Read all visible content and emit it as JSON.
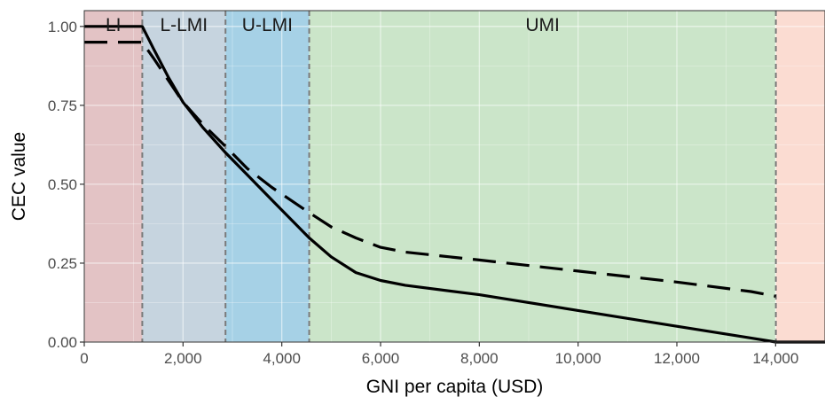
{
  "chart_data": {
    "type": "line",
    "xlabel": "GNI per capita (USD)",
    "ylabel": "CEC value",
    "xlim": [
      0,
      15000
    ],
    "ylim": [
      0,
      1.05
    ],
    "x_ticks": [
      0,
      2000,
      4000,
      6000,
      8000,
      10000,
      12000,
      14000
    ],
    "x_tick_labels": [
      "0",
      "2,000",
      "4,000",
      "6,000",
      "8,000",
      "10,000",
      "12,000",
      "14,000"
    ],
    "y_ticks": [
      0,
      0.25,
      0.5,
      0.75,
      1.0
    ],
    "y_tick_labels": [
      "0.00",
      "0.25",
      "0.50",
      "0.75",
      "1.00"
    ],
    "grid": true,
    "income_bands": [
      {
        "label": "LI",
        "from": 0,
        "to": 1175,
        "color": "#e3c3c5"
      },
      {
        "label": "L-LMI",
        "from": 1175,
        "to": 2860,
        "color": "#c6d4df"
      },
      {
        "label": "U-LMI",
        "from": 2860,
        "to": 4555,
        "color": "#a6d1e6"
      },
      {
        "label": "UMI",
        "from": 4555,
        "to": 14005,
        "color": "#cbe5c9"
      },
      {
        "label": "",
        "from": 14005,
        "to": 15000,
        "color": "#fbdcd2"
      }
    ],
    "band_boundaries": [
      1175,
      2860,
      4555,
      14005
    ],
    "series": [
      {
        "line_style": "solid",
        "x": [
          0,
          1175,
          1400,
          1700,
          2000,
          2400,
          2860,
          3300,
          3800,
          4555,
          5000,
          5500,
          6000,
          6500,
          8000,
          10000,
          12000,
          13500,
          14005,
          15000
        ],
        "y": [
          1.0,
          1.0,
          0.93,
          0.84,
          0.76,
          0.68,
          0.6,
          0.53,
          0.45,
          0.33,
          0.27,
          0.22,
          0.195,
          0.18,
          0.15,
          0.1,
          0.05,
          0.013,
          0.0,
          0.0
        ]
      },
      {
        "line_style": "dashed",
        "x": [
          0,
          1175,
          1400,
          1700,
          2000,
          2400,
          2860,
          3300,
          3800,
          4555,
          5000,
          5500,
          6000,
          6500,
          8000,
          10000,
          12000,
          13500,
          14005
        ],
        "y": [
          0.95,
          0.95,
          0.9,
          0.83,
          0.76,
          0.69,
          0.62,
          0.55,
          0.49,
          0.41,
          0.365,
          0.33,
          0.3,
          0.285,
          0.26,
          0.225,
          0.19,
          0.16,
          0.145
        ]
      }
    ]
  }
}
